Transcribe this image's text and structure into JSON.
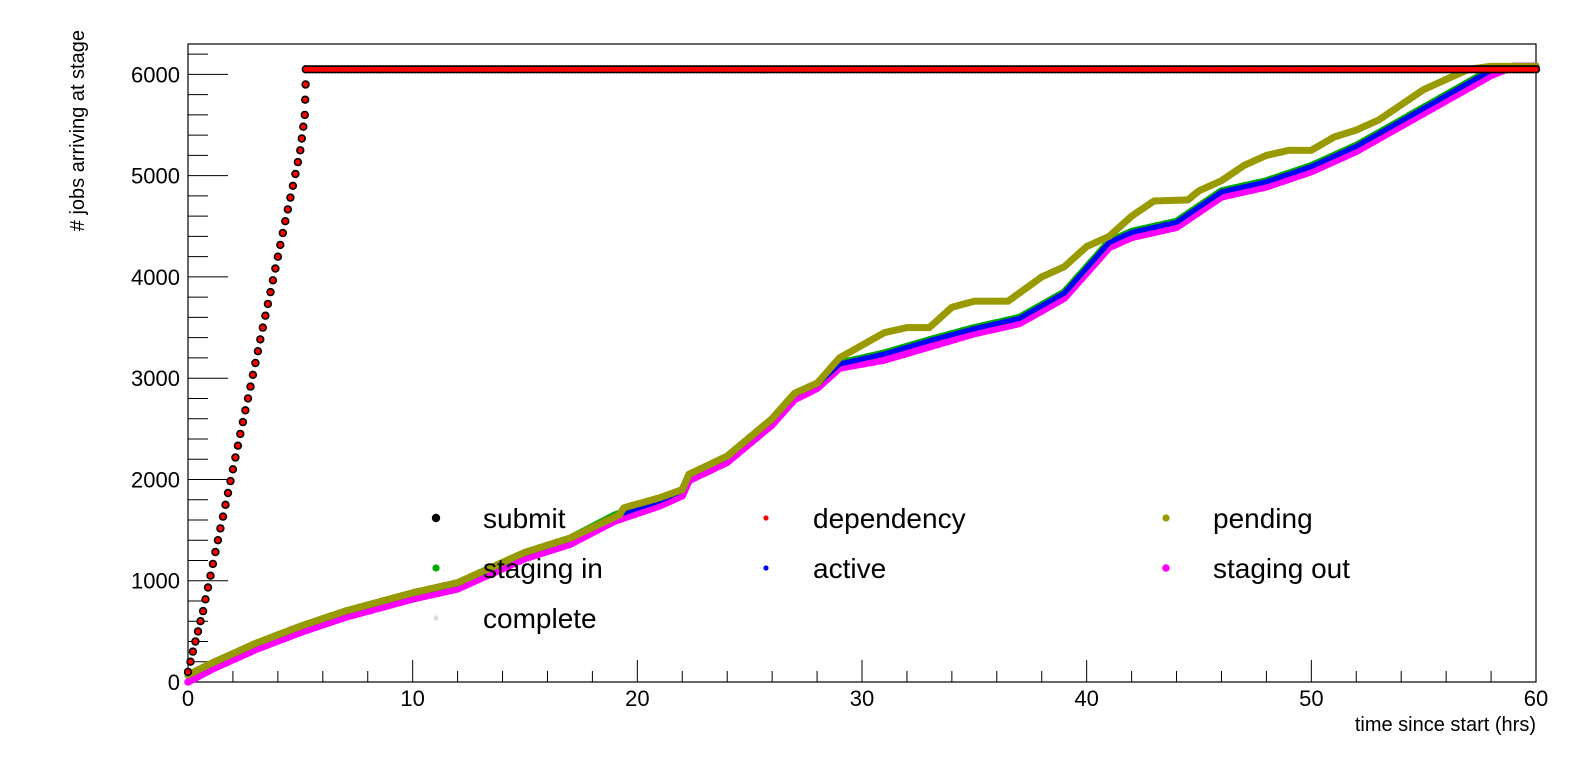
{
  "chart_data": {
    "type": "scatter",
    "title": "",
    "xlabel": "time since start (hrs)",
    "ylabel": "# jobs arriving at stage",
    "xlim": [
      0,
      60
    ],
    "ylim": [
      0,
      6300
    ],
    "x_ticks": [
      0,
      10,
      20,
      30,
      40,
      50,
      60
    ],
    "x_tick_labels": [
      "0",
      "10",
      "20",
      "30",
      "40",
      "50",
      "60"
    ],
    "y_ticks": [
      0,
      1000,
      2000,
      3000,
      4000,
      5000,
      6000
    ],
    "y_tick_labels": [
      "0",
      "1000",
      "2000",
      "3000",
      "4000",
      "5000",
      "6000"
    ],
    "grid": false,
    "legend_position": "lower-middle",
    "series": [
      {
        "name": "submit",
        "color": "#000000",
        "marker_size": 4.2,
        "style": "sparse",
        "points": [
          [
            0,
            100
          ],
          [
            0.33,
            400
          ],
          [
            0.67,
            700
          ],
          [
            1.0,
            1050
          ],
          [
            1.33,
            1400
          ],
          [
            1.67,
            1750
          ],
          [
            2.0,
            2100
          ],
          [
            2.33,
            2450
          ],
          [
            2.67,
            2800
          ],
          [
            3.0,
            3150
          ],
          [
            3.33,
            3500
          ],
          [
            3.67,
            3850
          ],
          [
            4.0,
            4200
          ],
          [
            4.33,
            4550
          ],
          [
            4.67,
            4900
          ],
          [
            5.0,
            5250
          ],
          [
            5.2,
            5600
          ],
          [
            5.25,
            6050
          ],
          [
            60,
            6050
          ]
        ]
      },
      {
        "name": "dependency",
        "color": "#ff0000",
        "marker_size": 2.6,
        "style": "sparse",
        "points": [
          [
            0,
            100
          ],
          [
            0.33,
            400
          ],
          [
            0.67,
            700
          ],
          [
            1.0,
            1050
          ],
          [
            1.33,
            1400
          ],
          [
            1.67,
            1750
          ],
          [
            2.0,
            2100
          ],
          [
            2.33,
            2450
          ],
          [
            2.67,
            2800
          ],
          [
            3.0,
            3150
          ],
          [
            3.33,
            3500
          ],
          [
            3.67,
            3850
          ],
          [
            4.0,
            4200
          ],
          [
            4.33,
            4550
          ],
          [
            4.67,
            4900
          ],
          [
            5.0,
            5250
          ],
          [
            5.2,
            5600
          ],
          [
            5.25,
            6050
          ],
          [
            60,
            6050
          ]
        ]
      },
      {
        "name": "pending",
        "color": "#999900",
        "marker_size": 3.6,
        "style": "dense",
        "points": [
          [
            0,
            70
          ],
          [
            1,
            180
          ],
          [
            3,
            380
          ],
          [
            5,
            550
          ],
          [
            7,
            700
          ],
          [
            10,
            880
          ],
          [
            12,
            980
          ],
          [
            15,
            1280
          ],
          [
            17,
            1420
          ],
          [
            19.2,
            1650
          ],
          [
            19.4,
            1720
          ],
          [
            21,
            1820
          ],
          [
            22,
            1900
          ],
          [
            22.3,
            2050
          ],
          [
            24,
            2230
          ],
          [
            26,
            2600
          ],
          [
            27,
            2850
          ],
          [
            28,
            2950
          ],
          [
            29,
            3200
          ],
          [
            31,
            3450
          ],
          [
            32,
            3500
          ],
          [
            33,
            3500
          ],
          [
            34,
            3700
          ],
          [
            35,
            3760
          ],
          [
            36.5,
            3760
          ],
          [
            38,
            4000
          ],
          [
            39,
            4100
          ],
          [
            40,
            4300
          ],
          [
            41,
            4400
          ],
          [
            42,
            4600
          ],
          [
            43,
            4750
          ],
          [
            44.5,
            4760
          ],
          [
            45,
            4850
          ],
          [
            46,
            4950
          ],
          [
            47,
            5100
          ],
          [
            48,
            5200
          ],
          [
            49,
            5250
          ],
          [
            50,
            5250
          ],
          [
            51,
            5380
          ],
          [
            52,
            5450
          ],
          [
            53,
            5550
          ],
          [
            54,
            5700
          ],
          [
            55,
            5850
          ],
          [
            56,
            5950
          ],
          [
            57,
            6050
          ],
          [
            58,
            6080
          ],
          [
            60,
            6080
          ]
        ]
      },
      {
        "name": "staging in",
        "color": "#00aa00",
        "marker_size": 3.6,
        "style": "dense",
        "points": [
          [
            0,
            70
          ],
          [
            1,
            180
          ],
          [
            3,
            380
          ],
          [
            5,
            550
          ],
          [
            7,
            700
          ],
          [
            10,
            880
          ],
          [
            12,
            980
          ],
          [
            15,
            1280
          ],
          [
            17,
            1420
          ],
          [
            19,
            1650
          ],
          [
            21,
            1800
          ],
          [
            22,
            1900
          ],
          [
            22.3,
            2050
          ],
          [
            24,
            2230
          ],
          [
            26,
            2600
          ],
          [
            27,
            2850
          ],
          [
            28,
            2950
          ],
          [
            29,
            3150
          ],
          [
            31,
            3250
          ],
          [
            33,
            3380
          ],
          [
            35,
            3500
          ],
          [
            37,
            3600
          ],
          [
            39,
            3850
          ],
          [
            40,
            4100
          ],
          [
            41,
            4350
          ],
          [
            42,
            4450
          ],
          [
            44,
            4550
          ],
          [
            45,
            4700
          ],
          [
            46,
            4850
          ],
          [
            48,
            4950
          ],
          [
            50,
            5100
          ],
          [
            52,
            5300
          ],
          [
            54,
            5550
          ],
          [
            56,
            5800
          ],
          [
            58,
            6050
          ],
          [
            60,
            6080
          ]
        ]
      },
      {
        "name": "active",
        "color": "#0000ff",
        "marker_size": 2.6,
        "style": "dense",
        "points": [
          [
            0,
            60
          ],
          [
            1,
            170
          ],
          [
            3,
            370
          ],
          [
            5,
            540
          ],
          [
            7,
            690
          ],
          [
            10,
            870
          ],
          [
            12,
            970
          ],
          [
            15,
            1270
          ],
          [
            17,
            1410
          ],
          [
            19,
            1640
          ],
          [
            21,
            1790
          ],
          [
            22,
            1890
          ],
          [
            22.3,
            2040
          ],
          [
            24,
            2220
          ],
          [
            26,
            2590
          ],
          [
            27,
            2840
          ],
          [
            28,
            2940
          ],
          [
            29,
            3140
          ],
          [
            31,
            3240
          ],
          [
            33,
            3370
          ],
          [
            35,
            3490
          ],
          [
            37,
            3590
          ],
          [
            39,
            3840
          ],
          [
            40,
            4090
          ],
          [
            41,
            4340
          ],
          [
            42,
            4440
          ],
          [
            44,
            4540
          ],
          [
            45,
            4690
          ],
          [
            46,
            4840
          ],
          [
            48,
            4940
          ],
          [
            50,
            5090
          ],
          [
            52,
            5290
          ],
          [
            54,
            5540
          ],
          [
            56,
            5790
          ],
          [
            58,
            6040
          ],
          [
            60,
            6080
          ]
        ]
      },
      {
        "name": "staging out",
        "color": "#ff00ff",
        "marker_size": 3.8,
        "style": "dense",
        "points": [
          [
            0,
            0
          ],
          [
            1,
            120
          ],
          [
            3,
            320
          ],
          [
            5,
            490
          ],
          [
            7,
            640
          ],
          [
            10,
            820
          ],
          [
            12,
            920
          ],
          [
            15,
            1220
          ],
          [
            17,
            1360
          ],
          [
            19,
            1590
          ],
          [
            21,
            1740
          ],
          [
            22,
            1840
          ],
          [
            22.3,
            1990
          ],
          [
            24,
            2170
          ],
          [
            26,
            2540
          ],
          [
            27,
            2790
          ],
          [
            28,
            2900
          ],
          [
            28.5,
            3000
          ],
          [
            29,
            3100
          ],
          [
            31,
            3180
          ],
          [
            33,
            3310
          ],
          [
            35,
            3440
          ],
          [
            37,
            3540
          ],
          [
            39,
            3790
          ],
          [
            40,
            4040
          ],
          [
            41,
            4290
          ],
          [
            42,
            4390
          ],
          [
            44,
            4490
          ],
          [
            45,
            4640
          ],
          [
            46,
            4790
          ],
          [
            48,
            4890
          ],
          [
            50,
            5040
          ],
          [
            52,
            5240
          ],
          [
            54,
            5490
          ],
          [
            56,
            5740
          ],
          [
            58,
            5990
          ],
          [
            59,
            6080
          ],
          [
            60,
            6080
          ]
        ]
      },
      {
        "name": "complete",
        "color": "#dddddd",
        "marker_size": 2.6,
        "style": "legend-only",
        "points": []
      }
    ],
    "legend_layout": [
      [
        "submit",
        "dependency",
        "pending"
      ],
      [
        "staging in",
        "active",
        "staging out"
      ],
      [
        "complete"
      ]
    ]
  }
}
